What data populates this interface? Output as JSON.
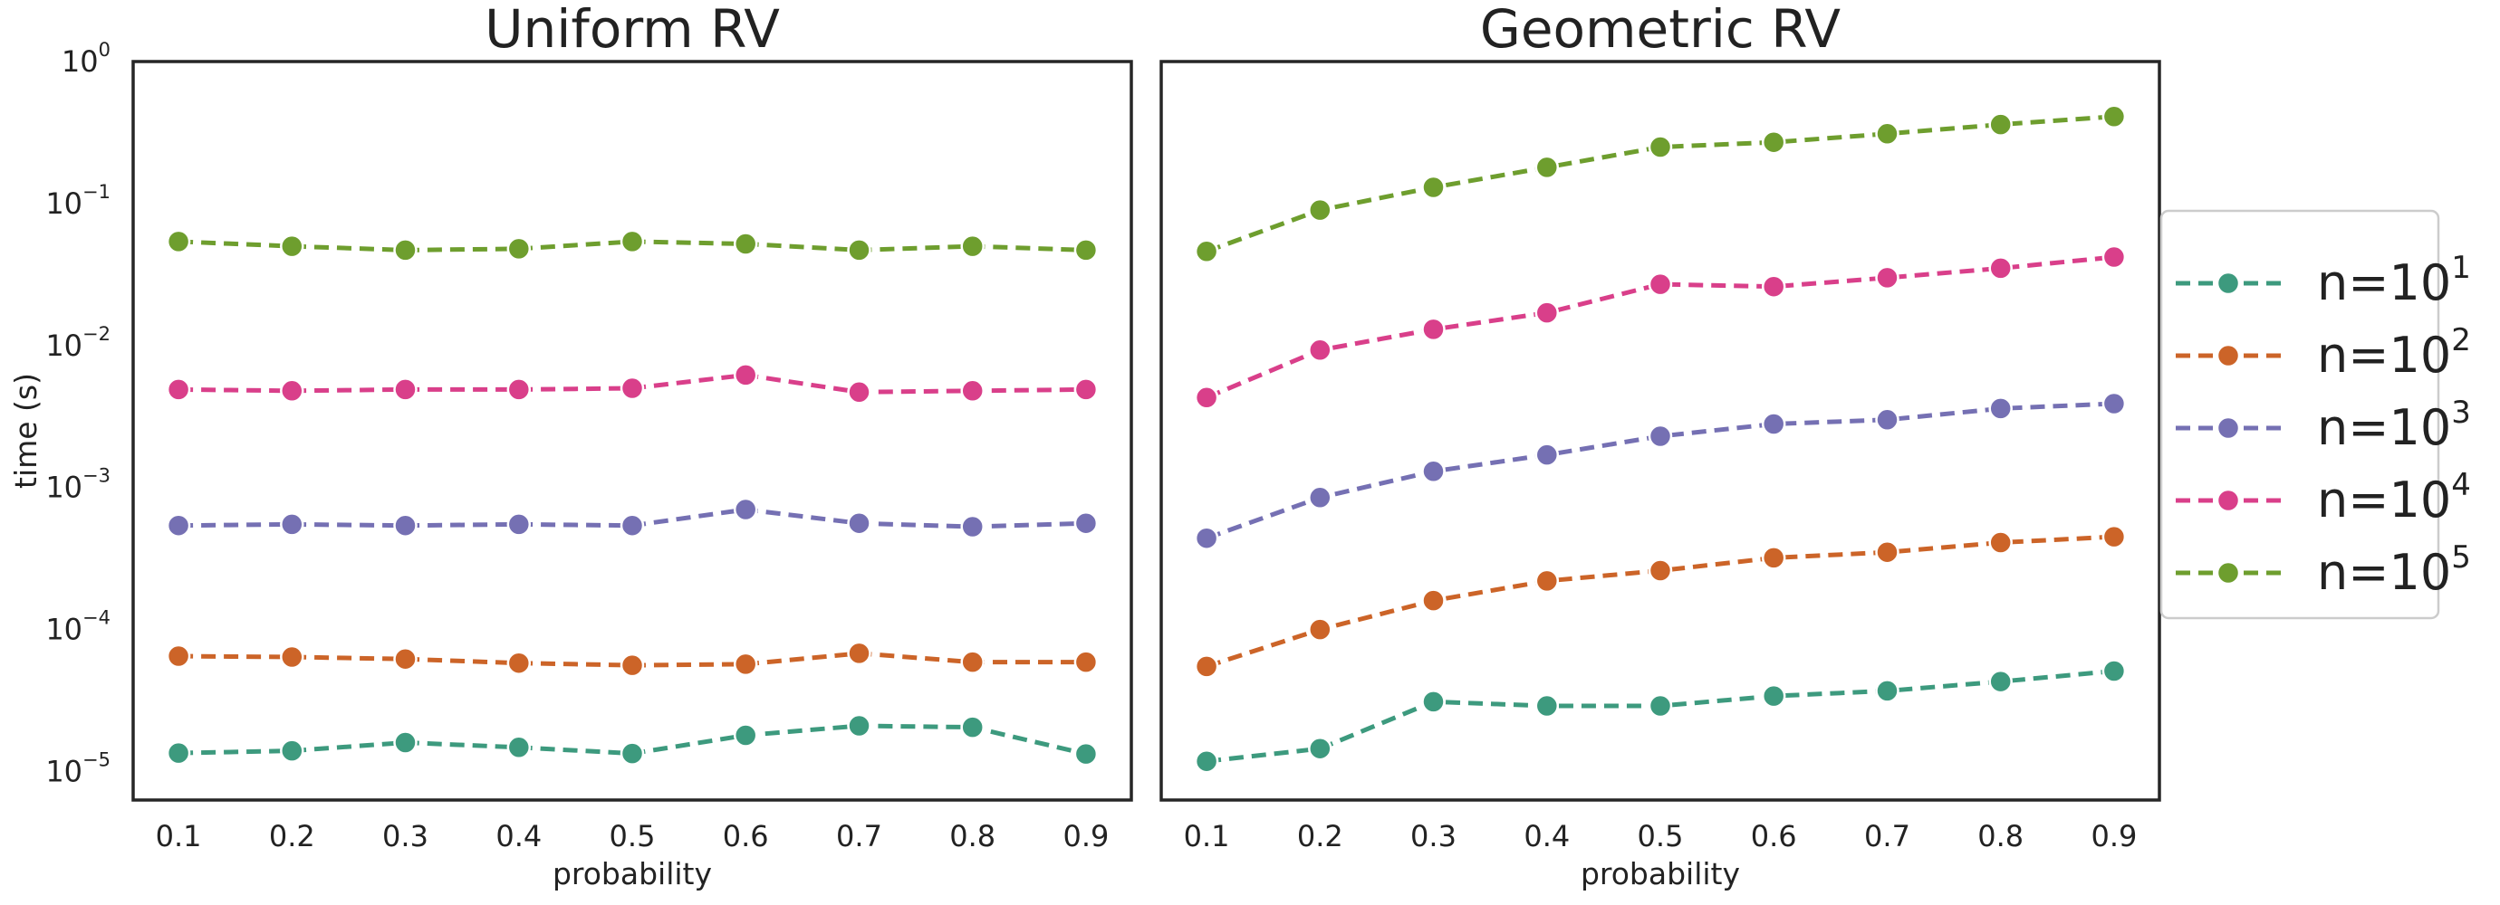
{
  "chart_data": [
    {
      "type": "line",
      "title": "Uniform RV",
      "xlabel": "probability",
      "ylabel": "time (s)",
      "x": [
        0.1,
        0.2,
        0.3,
        0.4,
        0.5,
        0.6,
        0.7,
        0.8,
        0.9
      ],
      "xlim": [
        0.06,
        0.94
      ],
      "ylim": [
        6.3e-06,
        1
      ],
      "yscale": "log",
      "grid": false,
      "series": [
        {
          "name": "n=10^1",
          "color": "#3d9a7e",
          "values": [
            1.35e-05,
            1.4e-05,
            1.6e-05,
            1.48e-05,
            1.34e-05,
            1.8e-05,
            2.1e-05,
            2.05e-05,
            1.33e-05
          ]
        },
        {
          "name": "n=10^2",
          "color": "#cc6428",
          "values": [
            6.5e-05,
            6.4e-05,
            6.2e-05,
            5.8e-05,
            5.6e-05,
            5.7e-05,
            6.8e-05,
            5.9e-05,
            5.9e-05
          ]
        },
        {
          "name": "n=10^3",
          "color": "#7570b3",
          "values": [
            0.00054,
            0.00055,
            0.00054,
            0.00055,
            0.00054,
            0.0007,
            0.00056,
            0.00053,
            0.00056
          ]
        },
        {
          "name": "n=10^4",
          "color": "#d93f8a",
          "values": [
            0.0049,
            0.0048,
            0.0049,
            0.0049,
            0.005,
            0.0062,
            0.0047,
            0.0048,
            0.0049
          ]
        },
        {
          "name": "n=10^5",
          "color": "#6e9e2e",
          "values": [
            0.054,
            0.05,
            0.047,
            0.048,
            0.054,
            0.052,
            0.047,
            0.05,
            0.047
          ]
        }
      ],
      "yticks": {
        "base": "10",
        "exponents": [
          "0",
          "−1",
          "−2",
          "−3",
          "−4",
          "−5"
        ]
      },
      "xtick_labels": [
        "0.1",
        "0.2",
        "0.3",
        "0.4",
        "0.5",
        "0.6",
        "0.7",
        "0.8",
        "0.9"
      ]
    },
    {
      "type": "line",
      "title": "Geometric RV",
      "xlabel": "probability",
      "ylabel": "",
      "x": [
        0.1,
        0.2,
        0.3,
        0.4,
        0.5,
        0.6,
        0.7,
        0.8,
        0.9
      ],
      "xlim": [
        0.06,
        0.94
      ],
      "ylim": [
        6.3e-06,
        1
      ],
      "yscale": "log",
      "grid": false,
      "series": [
        {
          "name": "n=10^1",
          "color": "#3d9a7e",
          "values": [
            1.18e-05,
            1.45e-05,
            3.1e-05,
            2.9e-05,
            2.9e-05,
            3.4e-05,
            3.7e-05,
            4.3e-05,
            5.1e-05
          ]
        },
        {
          "name": "n=10^2",
          "color": "#cc6428",
          "values": [
            5.5e-05,
            0.0001,
            0.00016,
            0.00022,
            0.00026,
            0.00032,
            0.00035,
            0.00041,
            0.00045
          ]
        },
        {
          "name": "n=10^3",
          "color": "#7570b3",
          "values": [
            0.00044,
            0.00085,
            0.0013,
            0.0017,
            0.0023,
            0.0028,
            0.003,
            0.0036,
            0.0039
          ]
        },
        {
          "name": "n=10^4",
          "color": "#d93f8a",
          "values": [
            0.0043,
            0.0093,
            0.013,
            0.017,
            0.027,
            0.026,
            0.03,
            0.035,
            0.042
          ]
        },
        {
          "name": "n=10^5",
          "color": "#6e9e2e",
          "values": [
            0.046,
            0.09,
            0.13,
            0.18,
            0.25,
            0.27,
            0.31,
            0.36,
            0.41
          ]
        }
      ],
      "xtick_labels": [
        "0.1",
        "0.2",
        "0.3",
        "0.4",
        "0.5",
        "0.6",
        "0.7",
        "0.8",
        "0.9"
      ]
    }
  ],
  "legend": {
    "placement": "right",
    "entries": [
      {
        "prefix": "n=10",
        "exponent": "1",
        "color": "#3d9a7e"
      },
      {
        "prefix": "n=10",
        "exponent": "2",
        "color": "#cc6428"
      },
      {
        "prefix": "n=10",
        "exponent": "3",
        "color": "#7570b3"
      },
      {
        "prefix": "n=10",
        "exponent": "4",
        "color": "#d93f8a"
      },
      {
        "prefix": "n=10",
        "exponent": "5",
        "color": "#6e9e2e"
      }
    ]
  }
}
